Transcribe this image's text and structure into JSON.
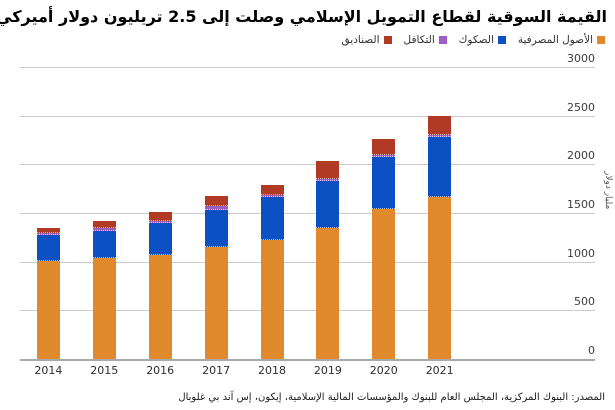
{
  "title": "القيمة السوقية لقطاع التمويل الإسلامي وصلت إلى 2.5 تريليون دولار أميركي",
  "source": "المصدر: البنوك المركزية، المجلس العام للبنوك والمؤسسات المالية الإسلامية، إيكون، إس آند بي غلوبال",
  "y_axis_title": "مليار دولار",
  "accent_colors": {
    "banking_assets": "#E1892D",
    "sukuk": "#0C50C4",
    "takaful": "#9A5FC0",
    "funds": "#B13A24",
    "gridline": "#cbcbcb",
    "baseline": "#a9a9a9"
  },
  "chart_data": {
    "type": "bar",
    "stacked": true,
    "title": "القيمة السوقية لقطاع التمويل الإسلامي وصلت إلى 2.5 تريليون دولار أميركي",
    "categories": [
      "2014",
      "2015",
      "2016",
      "2017",
      "2018",
      "2019",
      "2020",
      "2021"
    ],
    "series": [
      {
        "key": "banking_assets",
        "name": "الأصول المصرفية",
        "color": "#E1892D",
        "values": [
          1010,
          1040,
          1065,
          1150,
          1220,
          1350,
          1540,
          1665
        ]
      },
      {
        "key": "sukuk",
        "name": "الصكوك",
        "color": "#0C50C4",
        "values": [
          260,
          280,
          330,
          380,
          440,
          480,
          535,
          615
        ]
      },
      {
        "key": "takaful",
        "name": "التكافل",
        "color": "#9A5FC0",
        "values": [
          25,
          25,
          28,
          40,
          25,
          20,
          25,
          25
        ]
      },
      {
        "key": "funds",
        "name": "الصناديق",
        "color": "#B13A24",
        "values": [
          55,
          70,
          88,
          110,
          105,
          185,
          160,
          190
        ]
      }
    ],
    "totals": [
      1350,
      1415,
      1511,
      1680,
      1790,
      2035,
      2260,
      2495
    ],
    "xlabel": "",
    "ylabel": "مليار دولار",
    "units": "billion USD",
    "ylim": [
      0,
      3000
    ],
    "yticks": [
      0,
      500,
      1000,
      1500,
      2000,
      2500,
      3000
    ],
    "grid": true,
    "legend_position": "top-right",
    "bar_order_bottom_to_top": [
      "banking_assets",
      "sukuk",
      "takaful",
      "funds"
    ]
  }
}
